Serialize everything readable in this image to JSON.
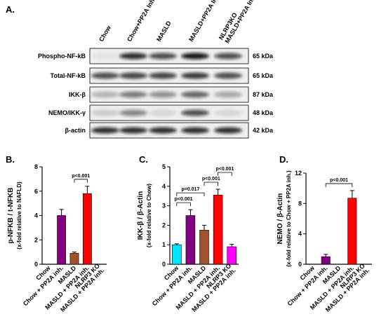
{
  "panel_a": {
    "panel": "A.",
    "lanes": [
      "Chow",
      "Chow+PP2A Inh.",
      "MASLD",
      "MASLD+PP2A Inh.",
      "NLRP3KO\nMASLD+PP2A Inh."
    ],
    "rows": [
      {
        "protein": "Phospho-NF-kB",
        "size": "65 kDa"
      },
      {
        "protein": "Total-NF-kB",
        "size": "65 kDa"
      },
      {
        "protein": "IKK-β",
        "size": "87 kDa"
      },
      {
        "protein": "NEMO/IKK-γ",
        "size": "48 kDa"
      },
      {
        "protein": "β-actin",
        "size": "42 kDa"
      }
    ]
  },
  "chart_data": [
    {
      "type": "bar",
      "panel": "B.",
      "ylabel": [
        "p-NFKB / t-NFKB",
        "(x-fold relative to NAFLD)"
      ],
      "categories": [
        "Chow",
        "Chow + PP2A inh.",
        "MASLD",
        "MASLD + PP2A inh.",
        "NLRP3 KO\nMASLD + PP2A inh."
      ],
      "values": [
        null,
        4.0,
        0.9,
        5.8,
        null
      ],
      "errors": [
        null,
        0.5,
        0.1,
        0.6,
        null
      ],
      "colors": [
        "#00e5ff",
        "#800080",
        "#a0522d",
        "#ff0000",
        "#ff00ff"
      ],
      "ylim": [
        0,
        8
      ],
      "yticks": [
        0,
        2,
        4,
        6,
        8
      ],
      "annotations": [
        {
          "from": 2,
          "to": 3,
          "label": "p<0.001"
        }
      ]
    },
    {
      "type": "bar",
      "panel": "C.",
      "ylabel": [
        "IKK-β / β-Actin",
        "(x-fold relative to Chow)"
      ],
      "categories": [
        "Chow",
        "Chow + PP2A inh.",
        "MASLD",
        "MASLD + PP2A inh.",
        "NLRP3 KO\nMASLD + PP2A inh."
      ],
      "values": [
        1.0,
        2.5,
        1.75,
        3.55,
        0.9
      ],
      "errors": [
        0.05,
        0.3,
        0.25,
        0.3,
        0.12
      ],
      "colors": [
        "#00e5ff",
        "#800080",
        "#a0522d",
        "#ff0000",
        "#ff00ff"
      ],
      "ylim": [
        0,
        5
      ],
      "yticks": [
        0,
        1,
        2,
        3,
        4,
        5
      ],
      "annotations": [
        {
          "from": 0,
          "to": 1,
          "label": "p<0.001"
        },
        {
          "from": 0,
          "to": 2,
          "label": "p=0.017"
        },
        {
          "from": 2,
          "to": 3,
          "label": "p<0.001"
        },
        {
          "from": 3,
          "to": 4,
          "label": "p<0.001"
        }
      ]
    },
    {
      "type": "bar",
      "panel": "D.",
      "ylabel": [
        "NEMO / β-Actin",
        "(x-fold relative to Chow + PP2A inh.)"
      ],
      "categories": [
        "Chow",
        "Chow + PP2A inh.",
        "MASLD",
        "MASLD + PP2A inh.",
        "NLRP3 KO\nMASLD + PP2A inh."
      ],
      "values": [
        null,
        1.0,
        null,
        8.7,
        null
      ],
      "errors": [
        null,
        0.3,
        null,
        1.0,
        null
      ],
      "colors": [
        "#00e5ff",
        "#800080",
        "#a0522d",
        "#ff0000",
        "#ff00ff"
      ],
      "ylim": [
        0,
        12
      ],
      "yticks": [
        0,
        4,
        8,
        12
      ],
      "annotations": [
        {
          "from": 1,
          "to": 3,
          "label": "p<0.001"
        }
      ]
    }
  ]
}
